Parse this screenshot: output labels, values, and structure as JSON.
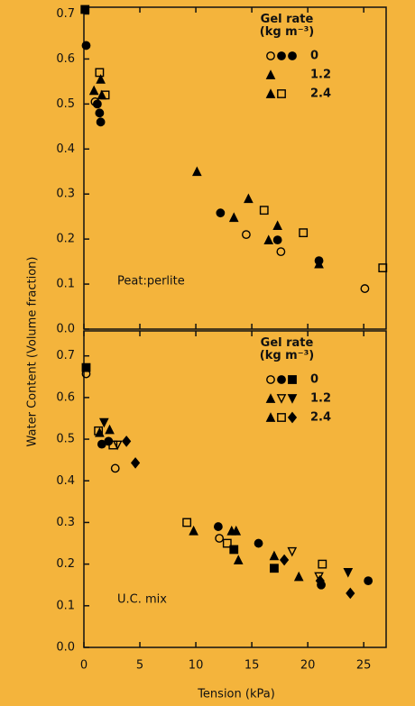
{
  "chart_data": [
    {
      "type": "scatter",
      "ylabel": "Water Content (Volume fraction)",
      "annotation": "Peat:perlite",
      "legend_title": [
        "Gel rate",
        "(kg m⁻³)"
      ],
      "xlim": [
        0,
        27
      ],
      "ylim": [
        0,
        0.715
      ],
      "yticks": [
        {
          "value": 0,
          "label": "0.0"
        },
        0.1,
        0.2,
        0.3,
        0.4,
        0.5,
        0.6,
        0.7
      ],
      "series": [
        {
          "name": "0",
          "color": "#000000",
          "legend_markers": [
            "circle-open",
            "circle-filled",
            "circle-filled"
          ],
          "x": [
            0.2,
            1.0,
            1.2,
            1.4,
            1.5,
            12.2,
            14.5,
            17.3,
            17.6,
            21,
            25.1
          ],
          "y": [
            0.63,
            0.505,
            0.5,
            0.48,
            0.46,
            0.258,
            0.21,
            0.198,
            0.172,
            0.152,
            0.09
          ],
          "markers": [
            "circle-filled",
            "circle-open",
            "circle-filled",
            "circle-filled",
            "circle-filled",
            "circle-filled",
            "circle-open",
            "circle-filled",
            "circle-open",
            "circle-filled",
            "circle-open"
          ]
        },
        {
          "name": "1.2",
          "color": "#000000",
          "legend_markers": [
            "triangle-filled"
          ],
          "x": [
            0.1,
            0.9,
            1.5,
            10.1,
            13.4,
            14.7,
            16.5,
            17.3,
            21
          ],
          "y": [
            0.71,
            0.53,
            0.555,
            0.35,
            0.248,
            0.29,
            0.198,
            0.23,
            0.145
          ],
          "markers": [
            "square-filled",
            "triangle-filled",
            "triangle-filled",
            "triangle-filled",
            "triangle-filled",
            "triangle-filled",
            "triangle-filled",
            "triangle-filled",
            "triangle-filled"
          ]
        },
        {
          "name": "2.4",
          "color": "#000000",
          "legend_markers": [
            "triangle-filled",
            "square-open"
          ],
          "x": [
            1.4,
            1.9,
            1.6,
            16.1,
            19.6,
            26.7
          ],
          "y": [
            0.57,
            0.52,
            0.52,
            0.264,
            0.214,
            0.136
          ],
          "markers": [
            "square-open",
            "square-open",
            "triangle-filled",
            "square-open",
            "square-open",
            "square-open"
          ]
        }
      ]
    },
    {
      "type": "scatter",
      "xlabel": "Tension (kPa)",
      "annotation": "U.C. mix",
      "legend_title": [
        "Gel rate",
        "(kg m⁻³)"
      ],
      "xlim": [
        0,
        27
      ],
      "xticks": [
        0,
        5,
        10,
        15,
        20,
        25
      ],
      "ylim": [
        0,
        0.76
      ],
      "yticks": [
        {
          "value": 0,
          "label": "0.0"
        },
        0.1,
        0.2,
        0.3,
        0.4,
        0.5,
        0.6,
        0.7
      ],
      "series": [
        {
          "name": "0",
          "color": "#000000",
          "legend_markers": [
            "circle-open",
            "circle-filled",
            "square-filled"
          ],
          "x": [
            0.2,
            0.2,
            1.6,
            2.2,
            2.8,
            12,
            12.1,
            13.4,
            15.6,
            17,
            21.2,
            25.4
          ],
          "y": [
            0.657,
            0.672,
            0.488,
            0.495,
            0.43,
            0.29,
            0.262,
            0.235,
            0.25,
            0.19,
            0.15,
            0.16
          ],
          "markers": [
            "circle-open",
            "square-filled",
            "circle-filled",
            "circle-filled",
            "circle-open",
            "circle-filled",
            "circle-open",
            "square-filled",
            "circle-filled",
            "square-filled",
            "circle-filled",
            "circle-filled"
          ]
        },
        {
          "name": "1.2",
          "color": "#000000",
          "legend_markers": [
            "triangle-filled",
            "triangle-down-open",
            "triangle-down-filled"
          ],
          "x": [
            1.8,
            2.3,
            13.2,
            13.6,
            13.8,
            17,
            18.6,
            19.2,
            21,
            23.6,
            3
          ],
          "y": [
            0.54,
            0.523,
            0.28,
            0.28,
            0.21,
            0.22,
            0.23,
            0.17,
            0.17,
            0.18,
            0.486
          ],
          "markers": [
            "triangle-down-filled",
            "triangle-filled",
            "triangle-filled",
            "triangle-filled",
            "triangle-filled",
            "triangle-filled",
            "triangle-down-open",
            "triangle-filled",
            "triangle-down-open",
            "triangle-down-filled",
            "triangle-down-open"
          ]
        },
        {
          "name": "2.4",
          "color": "#000000",
          "legend_markers": [
            "triangle-filled",
            "square-open",
            "diamond-filled"
          ],
          "x": [
            1.4,
            2.6,
            3.8,
            4.6,
            9.2,
            9.8,
            12.8,
            17.9,
            21.3,
            21.1,
            23.8,
            1.3
          ],
          "y": [
            0.516,
            0.486,
            0.495,
            0.443,
            0.3,
            0.28,
            0.25,
            0.21,
            0.2,
            0.16,
            0.13,
            0.52
          ],
          "markers": [
            "triangle-filled",
            "square-open",
            "diamond-filled",
            "diamond-filled",
            "square-open",
            "triangle-filled",
            "square-open",
            "diamond-filled",
            "square-open",
            "diamond-filled",
            "diamond-filled",
            "square-open"
          ]
        }
      ]
    }
  ]
}
